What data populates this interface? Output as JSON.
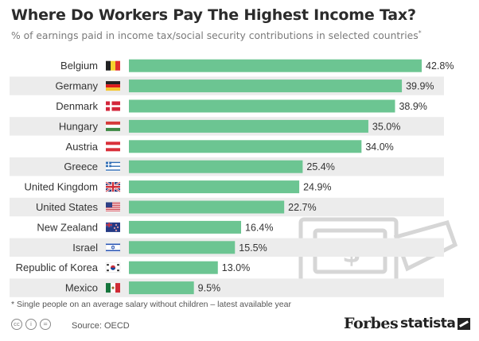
{
  "header": {
    "title": "Where Do Workers Pay The Highest Income Tax?",
    "subtitle": "% of earnings paid in income tax/social security contributions in selected countries",
    "subtitle_mark": "*"
  },
  "chart_data": {
    "type": "bar",
    "orientation": "horizontal",
    "title": "Where Do Workers Pay The Highest Income Tax?",
    "subtitle": "% of earnings paid in income tax/social security contributions in selected countries*",
    "xlabel": "",
    "ylabel": "",
    "xlim": [
      0,
      50
    ],
    "categories": [
      "Belgium",
      "Germany",
      "Denmark",
      "Hungary",
      "Austria",
      "Greece",
      "United Kingdom",
      "United States",
      "New Zealand",
      "Israel",
      "Republic of Korea",
      "Mexico"
    ],
    "values": [
      42.8,
      39.9,
      38.9,
      35.0,
      34.0,
      25.4,
      24.9,
      22.7,
      16.4,
      15.5,
      13.0,
      9.5
    ],
    "value_labels": [
      "42.8%",
      "39.9%",
      "38.9%",
      "35.0%",
      "34.0%",
      "25.4%",
      "24.9%",
      "22.7%",
      "16.4%",
      "15.5%",
      "13.0%",
      "9.5%"
    ],
    "flags": [
      "belgium-flag-icon",
      "germany-flag-icon",
      "denmark-flag-icon",
      "hungary-flag-icon",
      "austria-flag-icon",
      "greece-flag-icon",
      "united-kingdom-flag-icon",
      "united-states-flag-icon",
      "new-zealand-flag-icon",
      "israel-flag-icon",
      "korea-flag-icon",
      "mexico-flag-icon"
    ],
    "bar_color": "#6cc592",
    "row_band_color": "#ececec",
    "grid": false
  },
  "footer": {
    "footnote": "* Single people on an average salary without children – latest available year",
    "source": "Source: OECD",
    "brand_forbes": "Forbes",
    "brand_statista": "statista",
    "cc_icons": [
      "creative-commons-icon",
      "attribution-icon",
      "no-derivatives-icon"
    ],
    "decoration_icon": "money-banknote-hand-icon"
  }
}
